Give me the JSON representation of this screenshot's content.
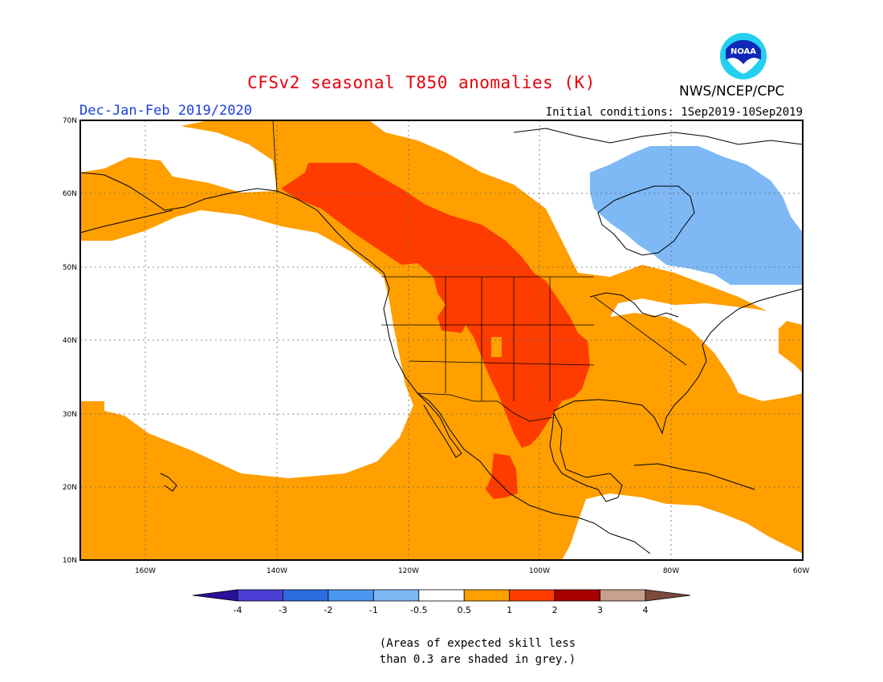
{
  "header": {
    "title": "CFSv2 seasonal T850 anomalies (K)",
    "agency": "NWS/NCEP/CPC",
    "season": "Dec-Jan-Feb 2019/2020",
    "initial_conditions": "Initial conditions: 1Sep2019-10Sep2019",
    "logo_text": "NOAA"
  },
  "map": {
    "lat_labels": [
      "70N",
      "60N",
      "50N",
      "40N",
      "30N",
      "20N",
      "10N"
    ],
    "lon_labels": [
      "160W",
      "140W",
      "120W",
      "100W",
      "80W",
      "60W"
    ],
    "lat_range": [
      10,
      70
    ],
    "lon_range": [
      -170,
      -60
    ],
    "grid": true
  },
  "colorbar": {
    "labels": [
      "-4",
      "-3",
      "-2",
      "-1",
      "-0.5",
      "0.5",
      "1",
      "2",
      "3",
      "4"
    ],
    "colors": [
      "#2a0f9a",
      "#4b3fd6",
      "#2d6be0",
      "#4b96ef",
      "#7eb8f5",
      "#ffffff",
      "#ff9f00",
      "#ff3c00",
      "#a80000",
      "#c8a08c",
      "#7a4a3a"
    ]
  },
  "footnote": {
    "line1": "(Areas of expected skill less",
    "line2": "than 0.3 are shaded in grey.)"
  }
}
